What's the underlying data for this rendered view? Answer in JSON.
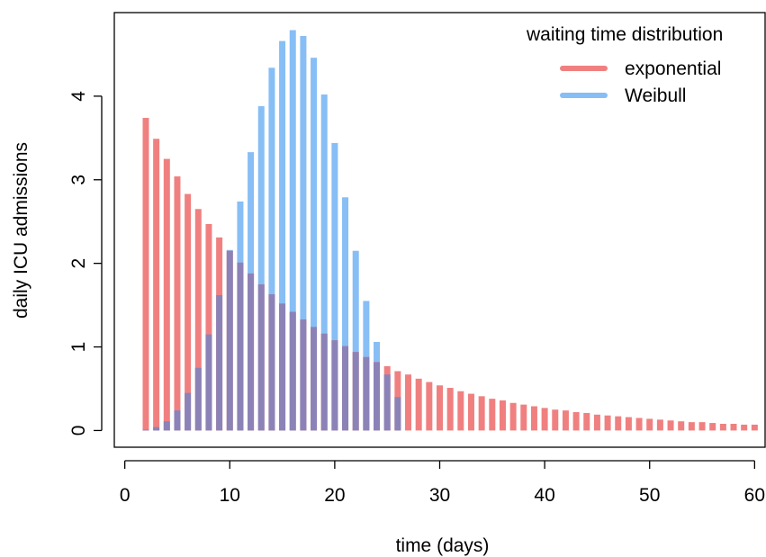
{
  "chart_data": {
    "type": "bar",
    "xlabel": "time (days)",
    "ylabel": "daily ICU admissions",
    "xlim": [
      -1,
      61
    ],
    "ylim": [
      -0.2,
      5.0
    ],
    "x_ticks": [
      0,
      10,
      20,
      30,
      40,
      50,
      60
    ],
    "y_ticks": [
      0,
      1,
      2,
      3,
      4
    ],
    "grid": false,
    "legend": {
      "title": "waiting time distribution",
      "placement": "top-right"
    },
    "series": [
      {
        "name": "exponential",
        "color": "#F08080",
        "x": [
          2,
          3,
          4,
          5,
          6,
          7,
          8,
          9,
          10,
          11,
          12,
          13,
          14,
          15,
          16,
          17,
          18,
          19,
          20,
          21,
          22,
          23,
          24,
          25,
          26,
          27,
          28,
          29,
          30,
          31,
          32,
          33,
          34,
          35,
          36,
          37,
          38,
          39,
          40,
          41,
          42,
          43,
          44,
          45,
          46,
          47,
          48,
          49,
          50,
          51,
          52,
          53,
          54,
          55,
          56,
          57,
          58,
          59,
          60
        ],
        "values": [
          3.74,
          3.49,
          3.25,
          3.04,
          2.83,
          2.65,
          2.47,
          2.31,
          2.15,
          2.01,
          1.88,
          1.75,
          1.63,
          1.52,
          1.42,
          1.33,
          1.24,
          1.16,
          1.08,
          1.01,
          0.94,
          0.88,
          0.82,
          0.77,
          0.71,
          0.67,
          0.62,
          0.58,
          0.54,
          0.51,
          0.47,
          0.44,
          0.41,
          0.38,
          0.36,
          0.33,
          0.31,
          0.29,
          0.27,
          0.25,
          0.24,
          0.22,
          0.21,
          0.19,
          0.18,
          0.17,
          0.16,
          0.15,
          0.14,
          0.13,
          0.12,
          0.11,
          0.1,
          0.1,
          0.09,
          0.08,
          0.08,
          0.07,
          0.07
        ]
      },
      {
        "name": "Weibull",
        "color": "#87BEF5",
        "x": [
          2,
          3,
          4,
          5,
          6,
          7,
          8,
          9,
          10,
          11,
          12,
          13,
          14,
          15,
          16,
          17,
          18,
          19,
          20,
          21,
          22,
          23,
          24,
          25,
          26
        ],
        "values": [
          0.01,
          0.04,
          0.11,
          0.24,
          0.45,
          0.75,
          1.15,
          1.62,
          2.16,
          2.74,
          3.33,
          3.88,
          4.34,
          4.66,
          4.79,
          4.72,
          4.46,
          4.02,
          3.44,
          2.79,
          2.15,
          1.55,
          1.06,
          0.67,
          0.4
        ]
      }
    ],
    "overlap_color": "#8B83B7"
  }
}
